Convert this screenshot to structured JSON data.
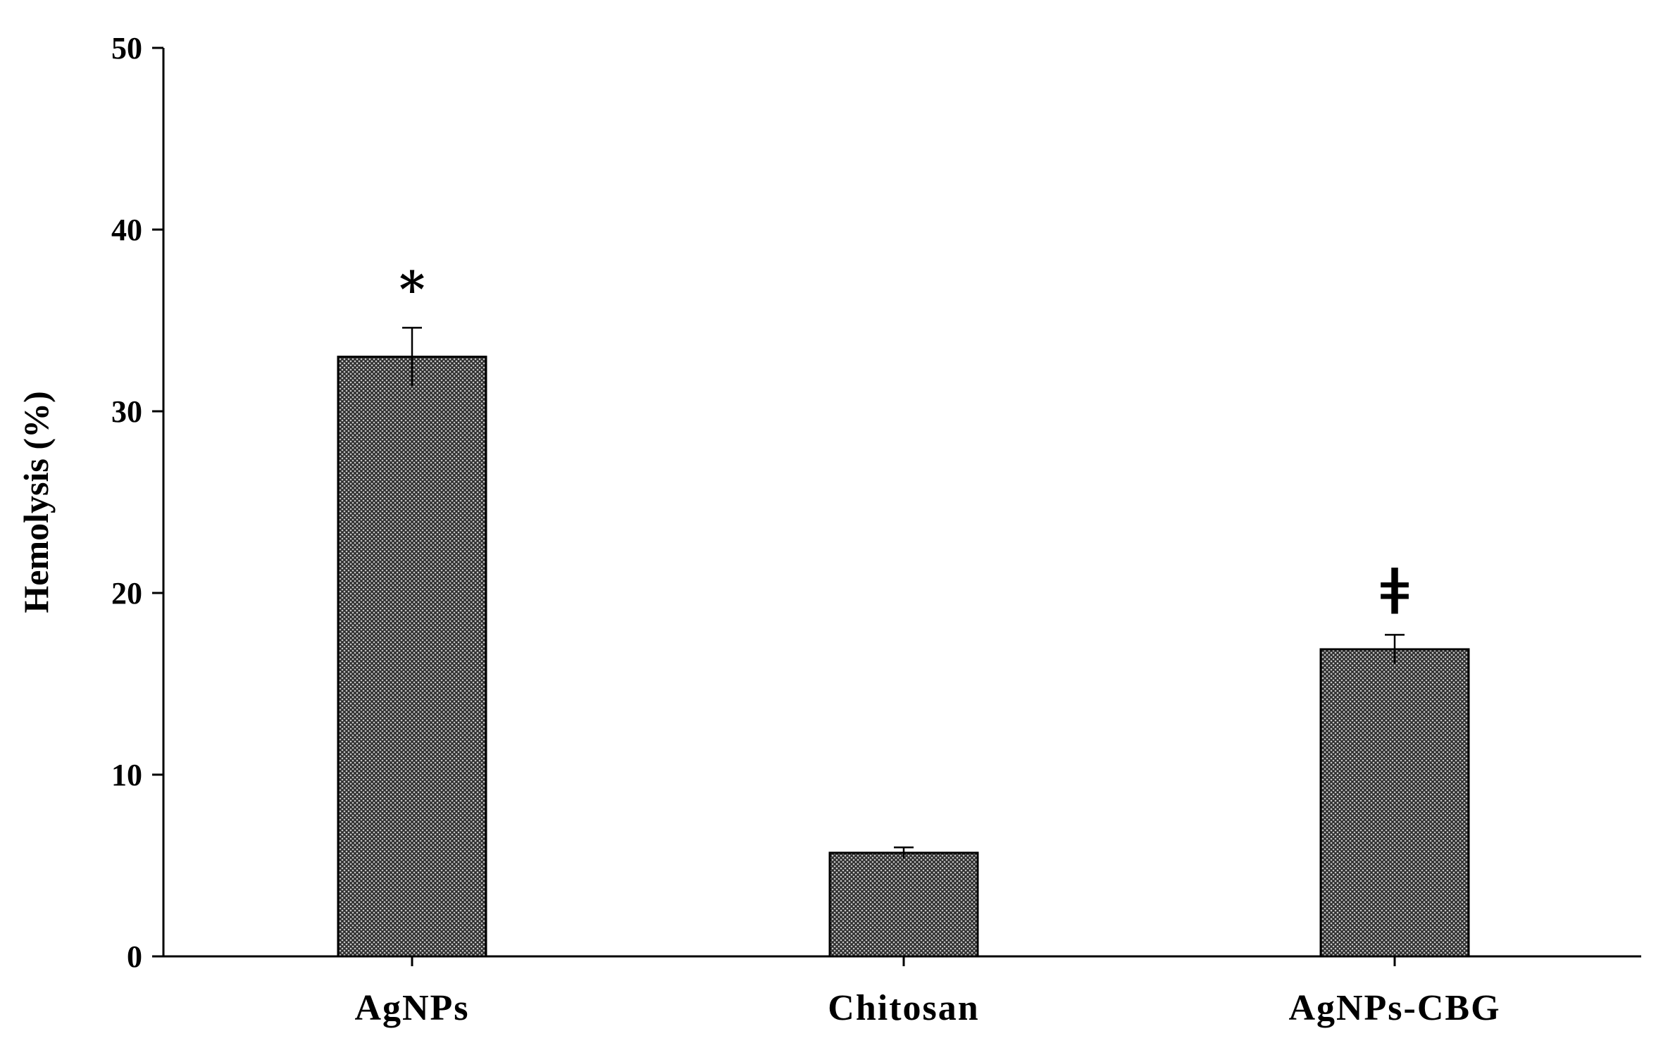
{
  "chart_data": {
    "type": "bar",
    "title": "",
    "xlabel": "",
    "ylabel": "Hemolysis (%)",
    "ylim": [
      0,
      50
    ],
    "yticks": [
      0,
      10,
      20,
      30,
      40,
      50
    ],
    "categories": [
      "AgNPs",
      "Chitosan",
      "AgNPs-CBG"
    ],
    "values": [
      33.0,
      5.7,
      16.9
    ],
    "errors": [
      1.6,
      0.3,
      0.8
    ],
    "annotations": [
      "*",
      "",
      "ǂ"
    ],
    "grid": false,
    "legend": "none",
    "bar_fill": "crosshatch dark gray",
    "colors": {
      "bar_dark": "#3a3a3a",
      "bar_light": "#d8d8d8",
      "axis": "#000000"
    }
  }
}
